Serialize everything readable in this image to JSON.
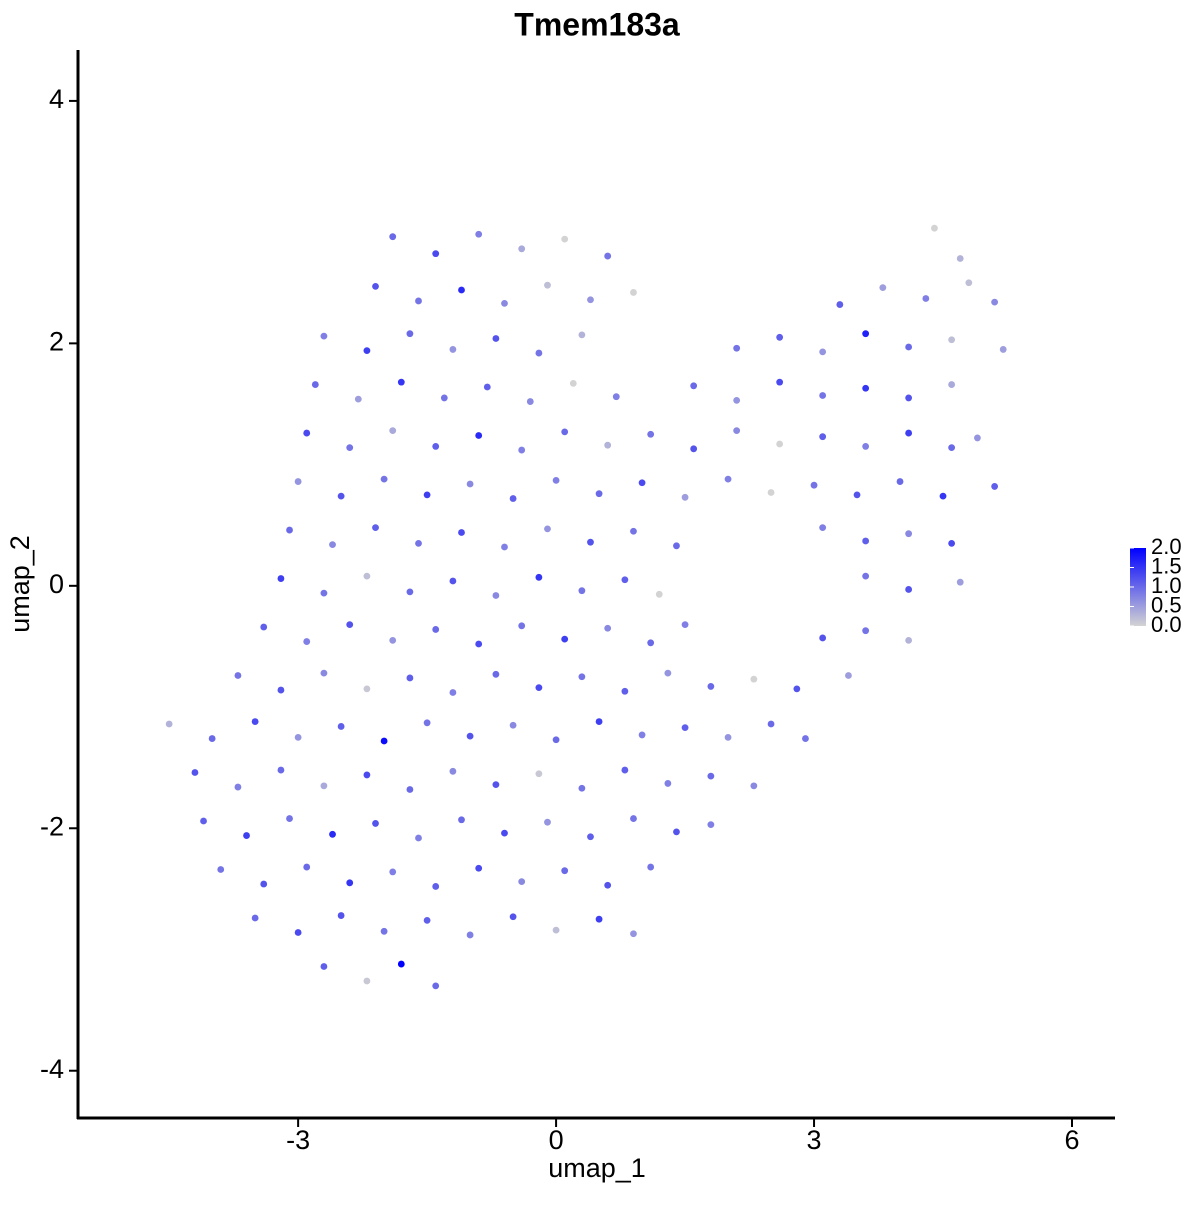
{
  "chart_data": {
    "type": "scatter",
    "title": "Tmem183a",
    "xlabel": "umap_1",
    "ylabel": "umap_2",
    "x": [
      -1.9,
      -1.4,
      -0.9,
      -0.4,
      0.1,
      0.6,
      4.4,
      4.7,
      -2.1,
      -1.6,
      -1.1,
      -0.6,
      -0.1,
      0.4,
      0.9,
      3.3,
      3.8,
      4.3,
      4.8,
      5.1,
      -2.7,
      -2.2,
      -1.7,
      -1.2,
      -0.7,
      -0.2,
      0.3,
      2.1,
      2.6,
      3.1,
      3.6,
      4.1,
      4.6,
      5.2,
      -2.8,
      -2.3,
      -1.8,
      -1.3,
      -0.8,
      -0.3,
      0.2,
      0.7,
      1.6,
      2.1,
      2.6,
      3.1,
      3.6,
      4.1,
      4.6,
      -2.9,
      -2.4,
      -1.9,
      -1.4,
      -0.9,
      -0.4,
      0.1,
      0.6,
      1.1,
      1.6,
      2.1,
      2.6,
      3.1,
      3.6,
      4.1,
      4.6,
      4.9,
      -3.0,
      -2.5,
      -2.0,
      -1.5,
      -1.0,
      -0.5,
      0,
      0.5,
      1.0,
      1.5,
      2.0,
      2.5,
      3.0,
      3.5,
      4.0,
      4.5,
      5.1,
      -3.1,
      -2.6,
      -2.1,
      -1.6,
      -1.1,
      -0.6,
      -0.1,
      0.4,
      0.9,
      1.4,
      3.1,
      3.6,
      4.1,
      4.6,
      -3.2,
      -2.7,
      -2.2,
      -1.7,
      -1.2,
      -0.7,
      -0.2,
      0.3,
      0.8,
      1.2,
      3.6,
      4.1,
      4.7,
      -3.4,
      -2.9,
      -2.4,
      -1.9,
      -1.4,
      -0.9,
      -0.4,
      0.1,
      0.6,
      1.1,
      1.5,
      3.1,
      3.6,
      4.1,
      -3.7,
      -3.2,
      -2.7,
      -2.2,
      -1.7,
      -1.2,
      -0.7,
      -0.2,
      0.3,
      0.8,
      1.3,
      1.8,
      2.3,
      2.8,
      3.4,
      -4.5,
      -4.0,
      -3.5,
      -3.0,
      -2.5,
      -2.0,
      -1.5,
      -1.0,
      -0.5,
      0,
      0.5,
      1.0,
      1.5,
      2.0,
      2.5,
      2.9,
      -4.2,
      -3.7,
      -3.2,
      -2.7,
      -2.2,
      -1.7,
      -1.2,
      -0.7,
      -0.2,
      0.3,
      0.8,
      1.3,
      1.8,
      2.3,
      -4.1,
      -3.6,
      -3.1,
      -2.6,
      -2.1,
      -1.6,
      -1.1,
      -0.6,
      -0.1,
      0.4,
      0.9,
      1.4,
      1.8,
      -3.9,
      -3.4,
      -2.9,
      -2.4,
      -1.9,
      -1.4,
      -0.9,
      -0.4,
      0.1,
      0.6,
      1.1,
      -3.5,
      -3.0,
      -2.5,
      -2.0,
      -1.5,
      -1.0,
      -0.5,
      0,
      0.5,
      0.9,
      -2.7,
      -2.2,
      -1.8,
      -1.4
    ],
    "y": [
      2.88,
      2.74,
      2.9,
      2.78,
      2.86,
      2.72,
      2.95,
      2.7,
      2.47,
      2.35,
      2.44,
      2.33,
      2.48,
      2.36,
      2.42,
      2.32,
      2.46,
      2.37,
      2.5,
      2.34,
      2.06,
      1.94,
      2.08,
      1.95,
      2.04,
      1.92,
      2.07,
      1.96,
      2.05,
      1.93,
      2.08,
      1.97,
      2.03,
      1.95,
      1.66,
      1.54,
      1.68,
      1.55,
      1.64,
      1.52,
      1.67,
      1.56,
      1.65,
      1.53,
      1.68,
      1.57,
      1.63,
      1.55,
      1.66,
      1.26,
      1.14,
      1.28,
      1.15,
      1.24,
      1.12,
      1.27,
      1.16,
      1.25,
      1.13,
      1.28,
      1.17,
      1.23,
      1.15,
      1.26,
      1.14,
      1.22,
      0.86,
      0.74,
      0.88,
      0.75,
      0.84,
      0.72,
      0.87,
      0.76,
      0.85,
      0.73,
      0.88,
      0.77,
      0.83,
      0.75,
      0.86,
      0.74,
      0.82,
      0.46,
      0.34,
      0.48,
      0.35,
      0.44,
      0.32,
      0.47,
      0.36,
      0.45,
      0.33,
      0.48,
      0.37,
      0.43,
      0.35,
      0.06,
      -0.06,
      0.08,
      -0.05,
      0.04,
      -0.08,
      0.07,
      -0.04,
      0.05,
      -0.07,
      0.08,
      -0.03,
      0.03,
      -0.34,
      -0.46,
      -0.32,
      -0.45,
      -0.36,
      -0.48,
      -0.33,
      -0.44,
      -0.35,
      -0.47,
      -0.32,
      -0.43,
      -0.37,
      -0.45,
      -0.74,
      -0.86,
      -0.72,
      -0.85,
      -0.76,
      -0.88,
      -0.73,
      -0.84,
      -0.75,
      -0.87,
      -0.72,
      -0.83,
      -0.77,
      -0.85,
      -0.74,
      -1.14,
      -1.26,
      -1.12,
      -1.25,
      -1.16,
      -1.28,
      -1.13,
      -1.24,
      -1.15,
      -1.27,
      -1.12,
      -1.23,
      -1.17,
      -1.25,
      -1.14,
      -1.26,
      -1.54,
      -1.66,
      -1.52,
      -1.65,
      -1.56,
      -1.68,
      -1.53,
      -1.64,
      -1.55,
      -1.67,
      -1.52,
      -1.63,
      -1.57,
      -1.65,
      -1.94,
      -2.06,
      -1.92,
      -2.05,
      -1.96,
      -2.08,
      -1.93,
      -2.04,
      -1.95,
      -2.07,
      -1.92,
      -2.03,
      -1.97,
      -2.34,
      -2.46,
      -2.32,
      -2.45,
      -2.36,
      -2.48,
      -2.33,
      -2.44,
      -2.35,
      -2.47,
      -2.32,
      -2.74,
      -2.86,
      -2.72,
      -2.85,
      -2.76,
      -2.88,
      -2.73,
      -2.84,
      -2.75,
      -2.87,
      -3.14,
      -3.26,
      -3.12,
      -3.3
    ],
    "values": [
      1.0,
      1.3,
      0.8,
      0.4,
      0,
      0.9,
      0,
      0.3,
      1.2,
      0.9,
      1.6,
      0.7,
      0.2,
      0.6,
      0,
      1.1,
      0.5,
      0.8,
      0.2,
      0.7,
      0.8,
      1.4,
      1.0,
      0.6,
      1.2,
      0.9,
      0.3,
      0.9,
      1.1,
      0.6,
      1.7,
      1.0,
      0.2,
      0.5,
      1.0,
      0.5,
      1.5,
      0.9,
      1.1,
      0.7,
      0,
      0.8,
      1.0,
      0.6,
      1.3,
      0.9,
      1.5,
      1.2,
      0.4,
      1.3,
      0.9,
      0.4,
      1.1,
      1.6,
      0.8,
      1.0,
      0.3,
      0.9,
      1.2,
      0.7,
      0,
      1.1,
      0.8,
      1.4,
      1.0,
      0.6,
      0.6,
      1.2,
      0.9,
      1.4,
      0.7,
      1.1,
      0.8,
      1.0,
      1.3,
      0.5,
      0.8,
      0,
      0.9,
      1.2,
      1.0,
      1.5,
      1.1,
      1.0,
      0.7,
      1.1,
      0.9,
      1.3,
      0.8,
      0.6,
      1.2,
      0.9,
      1.0,
      0.8,
      1.1,
      0.7,
      1.3,
      1.4,
      0.9,
      0.2,
      1.0,
      1.2,
      0.7,
      1.5,
      0.9,
      1.1,
      0,
      0.9,
      1.2,
      0.5,
      1.1,
      0.8,
      1.2,
      0.6,
      1.0,
      1.3,
      0.9,
      1.4,
      0.7,
      1.0,
      0.8,
      1.2,
      0.9,
      0.3,
      0.9,
      1.2,
      0.7,
      0.1,
      1.1,
      0.8,
      1.0,
      1.3,
      0.9,
      1.1,
      0.6,
      1.0,
      0,
      1.2,
      0.5,
      0.3,
      1.0,
      1.3,
      0.6,
      1.1,
      1.9,
      0.9,
      1.2,
      0.7,
      1.0,
      1.4,
      0.8,
      1.1,
      0.6,
      1.0,
      0.9,
      1.2,
      0.8,
      1.0,
      0.4,
      1.3,
      1.0,
      0.7,
      1.2,
      0.1,
      0.9,
      1.1,
      0.8,
      1.0,
      0.7,
      1.1,
      1.4,
      0.9,
      1.6,
      1.2,
      0.8,
      1.0,
      1.3,
      0.6,
      1.1,
      0.9,
      1.2,
      0.8,
      0.9,
      1.2,
      1.0,
      1.5,
      0.8,
      1.1,
      1.3,
      0.7,
      1.0,
      1.2,
      0.9,
      1.0,
      1.3,
      1.2,
      0.9,
      1.1,
      0.8,
      1.2,
      0.2,
      1.4,
      0.6,
      1.1,
      0.1,
      2.0,
      1.0
    ],
    "color_low": "#d3d3d3",
    "color_high": "#0000ff",
    "colorbar_lim": [
      0,
      2
    ],
    "colorbar_ticks": [
      {
        "value": 0,
        "label": "0.0"
      },
      0.5,
      {
        "value": 1,
        "label": "1.0"
      },
      1.5,
      {
        "value": 2,
        "label": "2.0"
      }
    ],
    "xlim": [
      -5.56,
      6.5
    ],
    "ylim": [
      -4.39,
      4.42
    ],
    "xticks": [
      -3,
      0,
      3,
      6
    ],
    "yticks": [
      -4,
      -2,
      0,
      2,
      4
    ]
  }
}
